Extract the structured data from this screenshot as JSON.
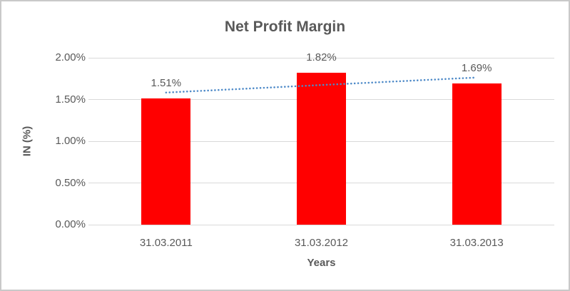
{
  "frame": {
    "border_color": "#c9c9c9",
    "background": "#ffffff"
  },
  "chart_data": {
    "type": "bar",
    "title": "Net Profit Margin",
    "categories": [
      "31.03.2011",
      "31.03.2012",
      "31.03.2013"
    ],
    "values": [
      1.51,
      1.82,
      1.69
    ],
    "data_labels": [
      "1.51%",
      "1.82%",
      "1.69%"
    ],
    "xlabel": "Years",
    "ylabel": "IN (%)",
    "ylim": [
      0,
      2
    ],
    "ytick_values": [
      0,
      0.5,
      1,
      1.5,
      2
    ],
    "ytick_labels": [
      "0.00%",
      "0.50%",
      "1.00%",
      "1.50%",
      "2.00%"
    ],
    "grid": true,
    "legend": "none",
    "bar_color": "#ff0000",
    "trendline": {
      "type": "linear",
      "style": "dotted",
      "color": "#4e8ac8"
    },
    "text_color": "#595959",
    "title_color": "#595959",
    "gridline_color": "#d9d9d9"
  }
}
